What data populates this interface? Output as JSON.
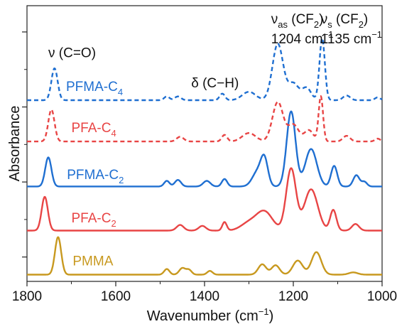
{
  "chart_data": {
    "type": "line",
    "title": "",
    "xlabel_main": "Wavenumber (cm",
    "xlabel_exp": "−1",
    "xlabel_close": ")",
    "ylabel": "Absorbance",
    "xlim": [
      1800,
      1000
    ],
    "x_reversed": true,
    "ylim": [
      -0.3,
      14.4
    ],
    "x_ticks": [
      1800,
      1600,
      1400,
      1200,
      1000
    ],
    "x_tick_labels": [
      "1800",
      "1600",
      "1400",
      "1200",
      "1000"
    ],
    "y_tick_labels_shown": false,
    "grid": false,
    "legend": "inline labels next to each trace",
    "series": [
      {
        "id": "pmma",
        "label_main": "PMMA",
        "label_sub": "",
        "color": "#c8991f",
        "dash": "solid",
        "offset": 0,
        "label_x": 1697,
        "label_y": 0.55,
        "baseline": 0.06,
        "peaks": [
          [
            1730,
            2.0,
            7
          ],
          [
            1485,
            0.3,
            6
          ],
          [
            1450,
            0.35,
            7
          ],
          [
            1435,
            0.25,
            6
          ],
          [
            1388,
            0.2,
            6
          ],
          [
            1270,
            0.55,
            9
          ],
          [
            1240,
            0.5,
            9
          ],
          [
            1190,
            0.75,
            11
          ],
          [
            1148,
            1.2,
            11
          ],
          [
            1065,
            0.12,
            10
          ]
        ]
      },
      {
        "id": "pfa_c2",
        "label_main": "PFA-C",
        "label_sub": "2",
        "color": "#e84545",
        "dash": "solid",
        "offset": 2.35,
        "label_x": 1700,
        "label_y": 2.85,
        "baseline": 0.06,
        "peaks": [
          [
            1760,
            1.8,
            7
          ],
          [
            1455,
            0.3,
            8
          ],
          [
            1405,
            0.25,
            8
          ],
          [
            1355,
            0.45,
            5
          ],
          [
            1300,
            0.4,
            18
          ],
          [
            1265,
            1.0,
            18
          ],
          [
            1205,
            3.3,
            11
          ],
          [
            1160,
            2.2,
            15
          ],
          [
            1110,
            1.1,
            7
          ],
          [
            1060,
            0.35,
            8
          ]
        ]
      },
      {
        "id": "pfma_c2",
        "label_main": "PFMA-C",
        "label_sub": "2",
        "color": "#1f6fd1",
        "dash": "solid",
        "offset": 4.7,
        "label_x": 1710,
        "label_y": 5.15,
        "baseline": 0.06,
        "peaks": [
          [
            1752,
            1.55,
            7
          ],
          [
            1485,
            0.3,
            6
          ],
          [
            1460,
            0.35,
            7
          ],
          [
            1395,
            0.3,
            8
          ],
          [
            1355,
            0.4,
            6
          ],
          [
            1280,
            0.8,
            12
          ],
          [
            1265,
            1.3,
            8
          ],
          [
            1205,
            4.0,
            10
          ],
          [
            1160,
            2.0,
            13
          ],
          [
            1108,
            1.1,
            7
          ],
          [
            1058,
            0.6,
            7
          ],
          [
            1040,
            0.25,
            6
          ]
        ]
      },
      {
        "id": "pfa_c4",
        "label_main": "PFA-C",
        "label_sub": "4",
        "color": "#e84545",
        "dash": "dashed",
        "offset": 7.1,
        "label_x": 1700,
        "label_y": 7.65,
        "baseline": 0.06,
        "peaks": [
          [
            1745,
            1.7,
            7
          ],
          [
            1455,
            0.25,
            8
          ],
          [
            1355,
            0.35,
            6
          ],
          [
            1300,
            0.45,
            15
          ],
          [
            1235,
            2.1,
            12
          ],
          [
            1200,
            0.9,
            12
          ],
          [
            1165,
            0.6,
            10
          ],
          [
            1138,
            2.4,
            5
          ],
          [
            1080,
            0.3,
            8
          ],
          [
            1010,
            0.15,
            6
          ]
        ]
      },
      {
        "id": "pfma_c4",
        "label_main": "PFMA-C",
        "label_sub": "4",
        "color": "#1f6fd1",
        "dash": "dashed",
        "offset": 9.3,
        "label_x": 1712,
        "label_y": 9.85,
        "baseline": 0.06,
        "peaks": [
          [
            1738,
            1.7,
            7
          ],
          [
            1485,
            0.2,
            6
          ],
          [
            1460,
            0.2,
            7
          ],
          [
            1360,
            0.35,
            6
          ],
          [
            1300,
            0.45,
            15
          ],
          [
            1235,
            3.0,
            12
          ],
          [
            1200,
            0.9,
            12
          ],
          [
            1170,
            0.65,
            10
          ],
          [
            1135,
            3.3,
            6
          ],
          [
            1080,
            0.25,
            8
          ],
          [
            1010,
            0.15,
            6
          ]
        ]
      }
    ],
    "annotations": [
      {
        "id": "co",
        "text": "ν (C=O)",
        "x": 1752,
        "y": 11.65
      },
      {
        "id": "ch",
        "text": "δ (C−H)",
        "x": 1430,
        "y": 10.05
      }
    ],
    "vas": {
      "main": "ν",
      "sub": "as",
      "label": " (CF",
      "sub2": "2",
      "close": ")",
      "line2": "1204 cm",
      "sup": "−1",
      "x": 1250,
      "y": 13.45,
      "y2": 12.4
    },
    "vs": {
      "main": "ν",
      "sub": "s",
      "label": " (CF",
      "sub2": "2",
      "close": ")",
      "line2": "1135 cm",
      "sup": "−1",
      "x": 1138,
      "y": 13.45,
      "y2": 12.4
    }
  }
}
